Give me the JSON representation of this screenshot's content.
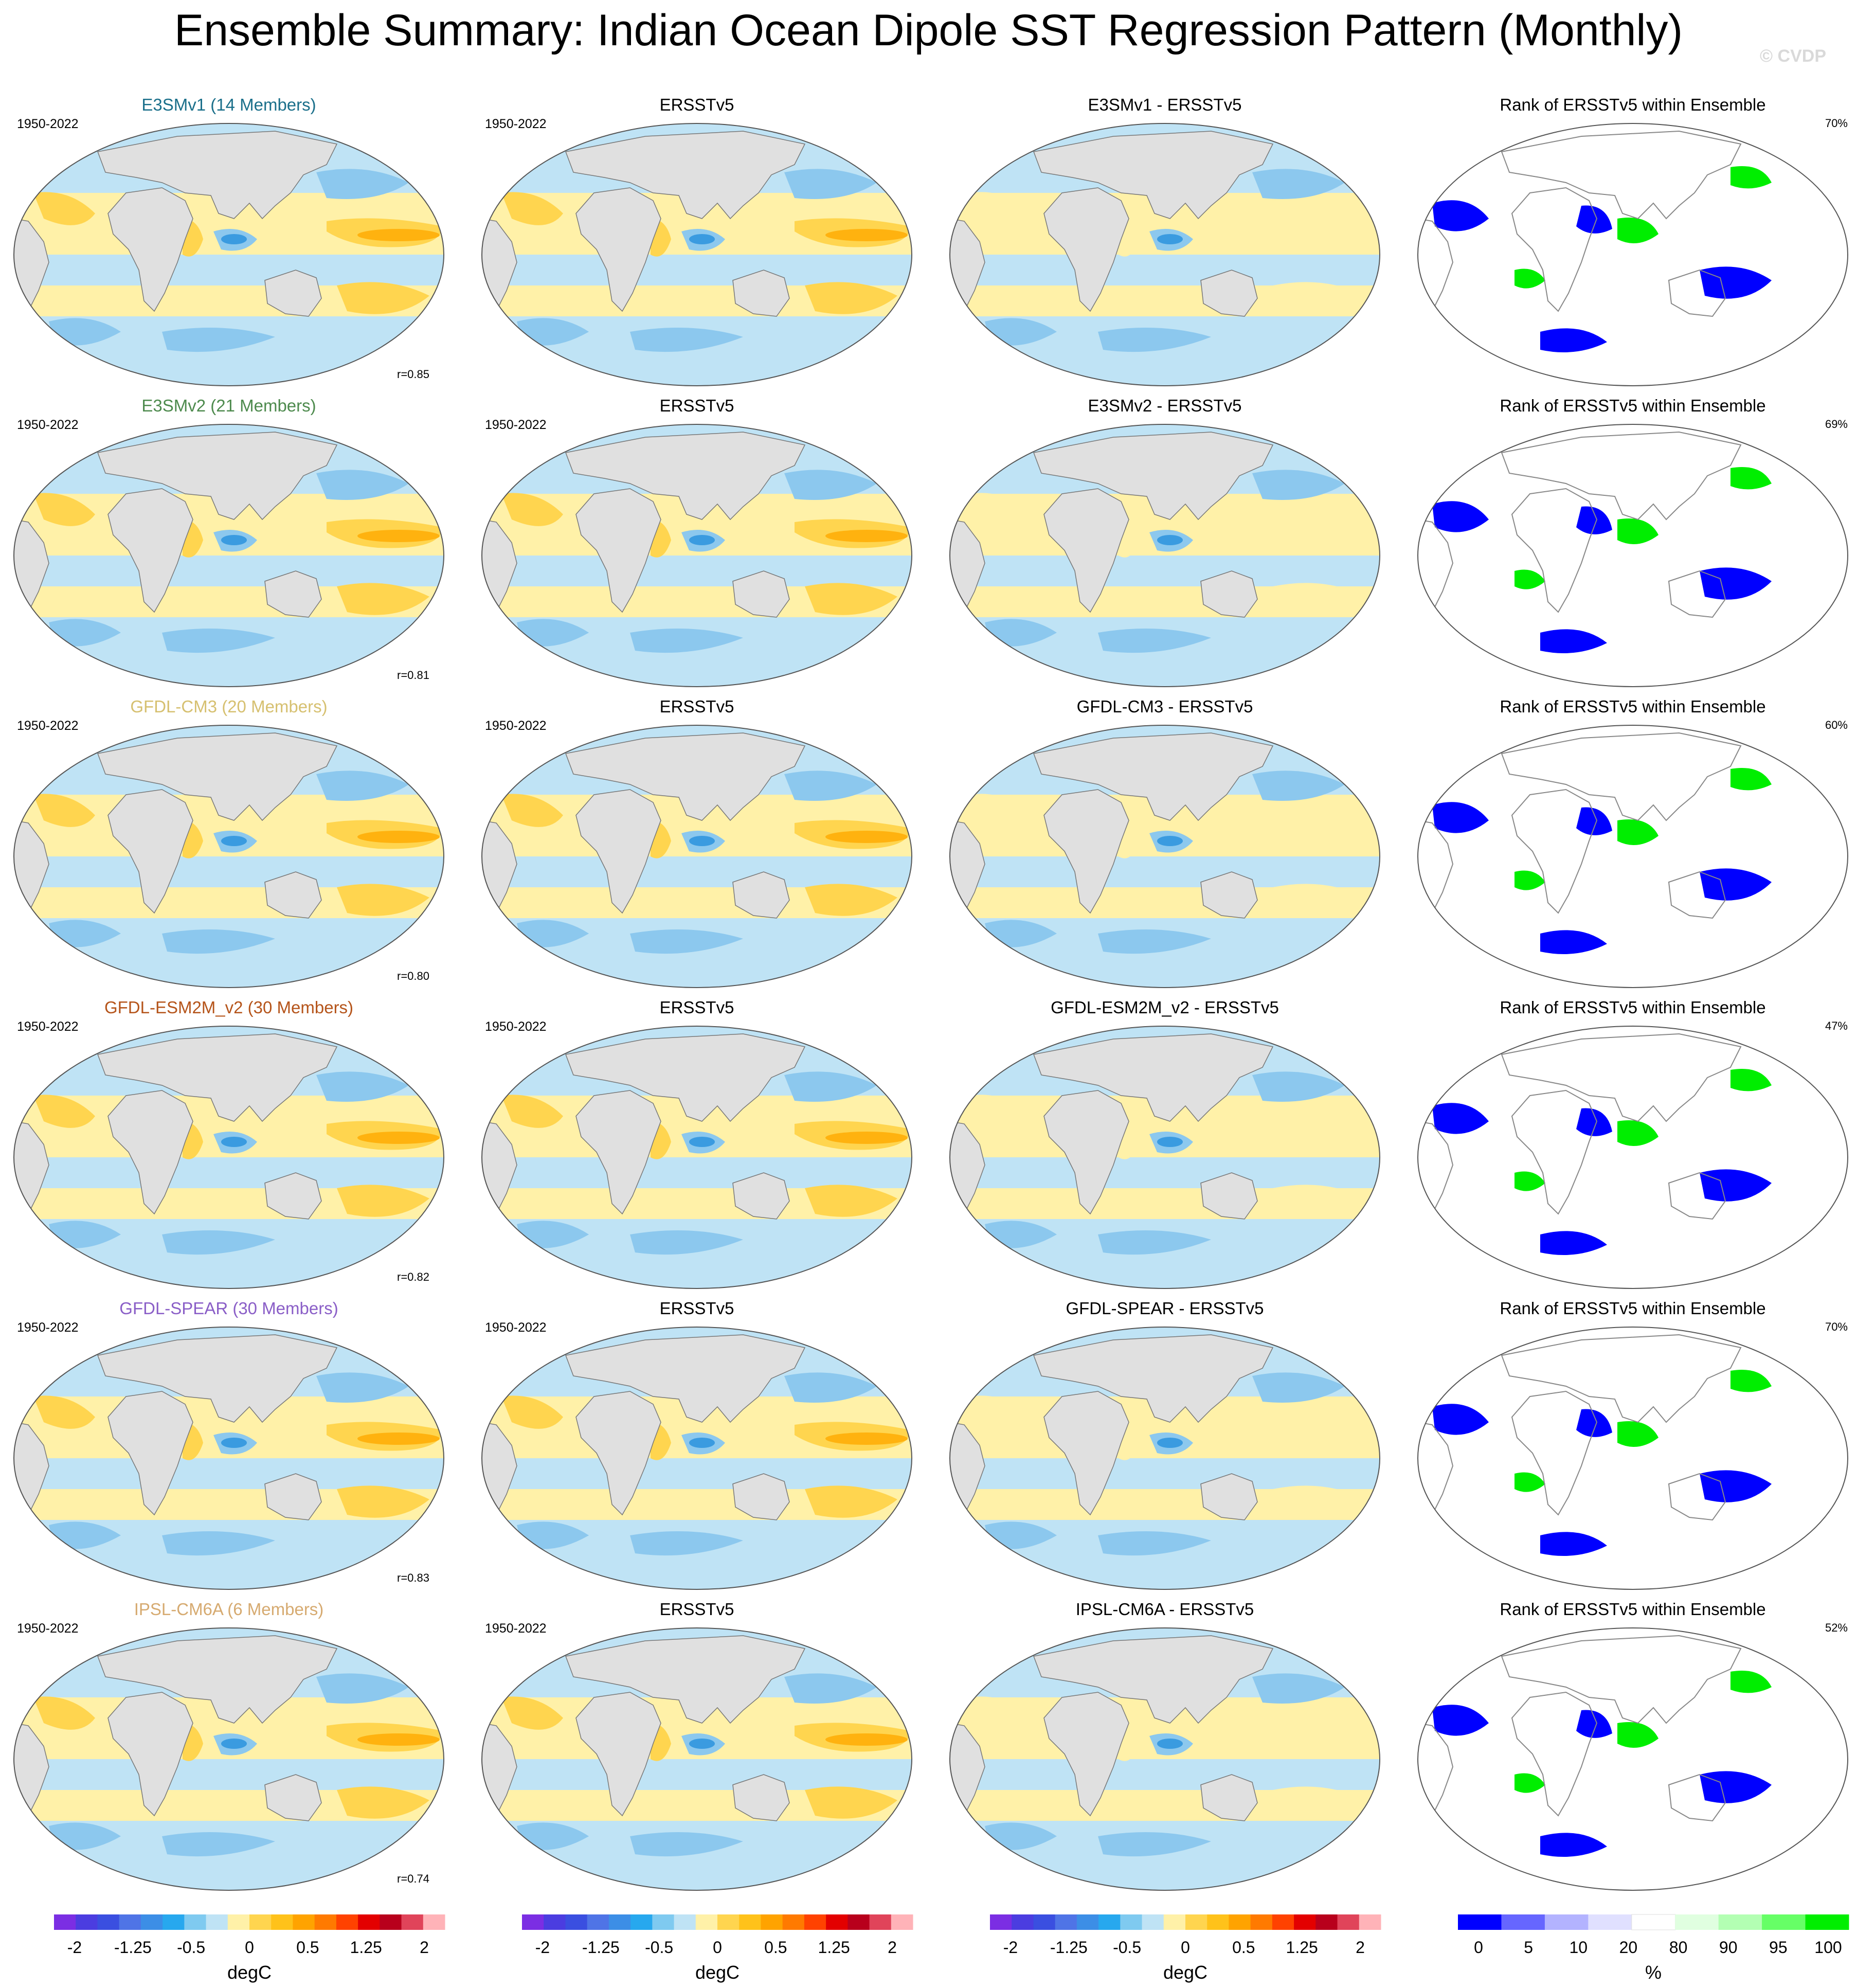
{
  "title": "Ensemble Summary: Indian Ocean Dipole SST Regression Pattern (Monthly)",
  "watermark": "© CVDP",
  "colors": {
    "land": "#e0e0e0",
    "ocean_weak_pos": "#fff1a8",
    "ocean_weak_neg": "#bfe3f5",
    "pos_mid": "#ffd54f",
    "pos_strong": "#ffb20f",
    "neg_mid": "#8cc8ee",
    "neg_strong": "#3a9be0",
    "rank_low": "#0000ff",
    "rank_high": "#00ee00"
  },
  "rows": [
    {
      "model": "E3SMv1 (14 Members)",
      "model_color": "#1a6f8a",
      "years": "1950-2022",
      "r": "r=0.85",
      "obs_title": "ERSSTv5",
      "diff_title": "E3SMv1 - ERSSTv5",
      "rank_title": "Rank of ERSSTv5 within Ensemble",
      "rank_pct": "70%"
    },
    {
      "model": "E3SMv2 (21 Members)",
      "model_color": "#4d8a4d",
      "years": "1950-2022",
      "r": "r=0.81",
      "obs_title": "ERSSTv5",
      "diff_title": "E3SMv2 - ERSSTv5",
      "rank_title": "Rank of ERSSTv5 within Ensemble",
      "rank_pct": "69%"
    },
    {
      "model": "GFDL-CM3 (20 Members)",
      "model_color": "#d6c070",
      "years": "1950-2022",
      "r": "r=0.80",
      "obs_title": "ERSSTv5",
      "diff_title": "GFDL-CM3 - ERSSTv5",
      "rank_title": "Rank of ERSSTv5 within Ensemble",
      "rank_pct": "60%"
    },
    {
      "model": "GFDL-ESM2M_v2 (30 Members)",
      "model_color": "#b5541a",
      "years": "1950-2022",
      "r": "r=0.82",
      "obs_title": "ERSSTv5",
      "diff_title": "GFDL-ESM2M_v2 - ERSSTv5",
      "rank_title": "Rank of ERSSTv5 within Ensemble",
      "rank_pct": "47%"
    },
    {
      "model": "GFDL-SPEAR (30 Members)",
      "model_color": "#8a5ec7",
      "years": "1950-2022",
      "r": "r=0.83",
      "obs_title": "ERSSTv5",
      "diff_title": "GFDL-SPEAR - ERSSTv5",
      "rank_title": "Rank of ERSSTv5 within Ensemble",
      "rank_pct": "70%"
    },
    {
      "model": "IPSL-CM6A (6 Members)",
      "model_color": "#d6aa70",
      "years": "1950-2022",
      "r": "r=0.74",
      "obs_title": "ERSSTv5",
      "diff_title": "IPSL-CM6A - ERSSTv5",
      "rank_title": "Rank of ERSSTv5 within Ensemble",
      "rank_pct": "52%"
    }
  ],
  "colorbar_sst": {
    "label": "degC",
    "ticks": [
      "-2",
      "-1.25",
      "-0.5",
      "0",
      "0.5",
      "1.25",
      "2"
    ],
    "colors": [
      "#7b2ee3",
      "#4b3de0",
      "#3a4fe0",
      "#4f74e6",
      "#3c8ee6",
      "#27a8ee",
      "#7fcaf0",
      "#bfe3f5",
      "#fff1a8",
      "#ffd54f",
      "#ffc21a",
      "#ffa300",
      "#ff7a00",
      "#ff4200",
      "#e30000",
      "#b8001c",
      "#e0445a",
      "#ffb3b8"
    ]
  },
  "colorbar_rank": {
    "label": "%",
    "ticks": [
      "0",
      "5",
      "10",
      "20",
      "80",
      "90",
      "95",
      "100"
    ],
    "colors": [
      "#0000ff",
      "#6666ff",
      "#b3b3ff",
      "#e0e0ff",
      "#ffffff",
      "#e0ffe0",
      "#b3ffb3",
      "#66ff66",
      "#00ee00"
    ]
  }
}
